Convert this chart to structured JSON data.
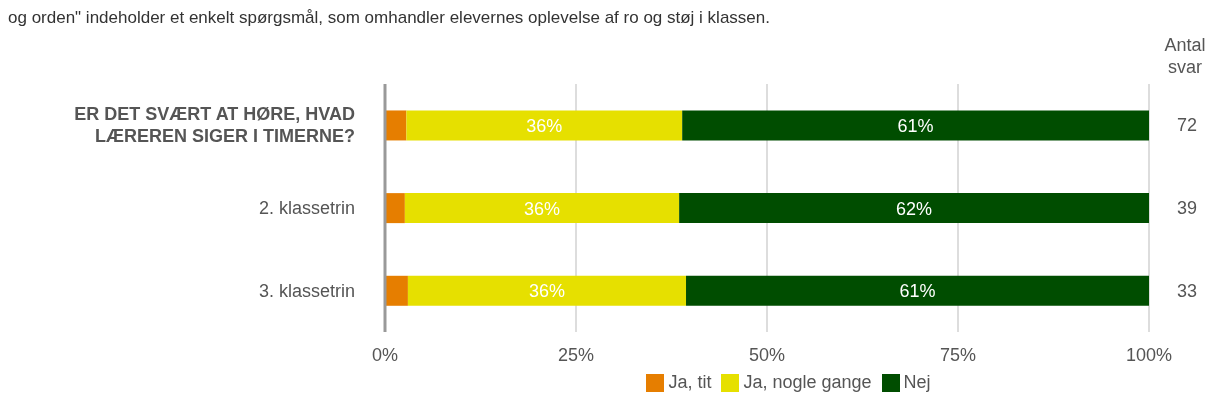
{
  "chart_data": {
    "type": "bar",
    "orientation": "horizontal",
    "stacked": true,
    "annotations": [
      "og orden\" indeholder et enkelt spørgsmål, som omhandler elevernes oplevelse af ro og støj i klassen."
    ],
    "categories": [
      "ER DET SVÆRT AT HØRE, HVAD LÆREREN SIGER I TIMERNE?",
      "2. klassetrin",
      "3. klassetrin"
    ],
    "y2label": "Antal svar",
    "y2_categories": [
      "72",
      "39",
      "33"
    ],
    "series": [
      {
        "name": "Ja, tit",
        "color": "#e67e00",
        "values": [
          2.8,
          2.6,
          3.0
        ],
        "value_labels": [
          null,
          null,
          null
        ]
      },
      {
        "name": "Ja, nogle gange",
        "color": "#e6e000",
        "values": [
          36.1,
          35.9,
          36.4
        ],
        "value_labels": [
          "36%",
          "36%",
          "36%"
        ]
      },
      {
        "name": "Nej",
        "color": "#004d00",
        "values": [
          61.1,
          61.5,
          60.6
        ],
        "value_labels": [
          "61%",
          "62%",
          "61%"
        ]
      }
    ],
    "xlim": [
      0,
      100
    ],
    "xticks": [
      {
        "value": 0,
        "label": "0%"
      },
      {
        "value": 25,
        "label": "25%"
      },
      {
        "value": 50,
        "label": "50%"
      },
      {
        "value": 75,
        "label": "75%"
      },
      {
        "value": 100,
        "label": "100%"
      }
    ],
    "grid": "x",
    "legend": "bottom"
  }
}
